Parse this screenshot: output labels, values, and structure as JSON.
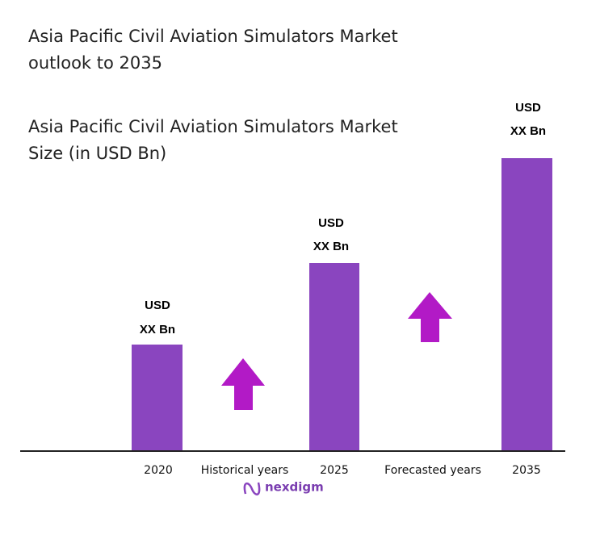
{
  "title": [
    "Asia Pacific Civil Aviation Simulators Market",
    "outlook to 2035"
  ],
  "subtitle": [
    "Asia Pacific Civil Aviation Simulators Market",
    "Size (in USD Bn)"
  ],
  "bars": [
    {
      "label": "2020",
      "value_label": [
        "USD",
        "XX Bn"
      ]
    },
    {
      "label": "2025",
      "value_label": [
        "USD",
        "XX Bn"
      ]
    },
    {
      "label": "2035",
      "value_label": [
        "USD",
        "XX Bn"
      ]
    }
  ],
  "periods": [
    "Historical years",
    "Forecasted years"
  ],
  "logo": "nexdigm"
}
